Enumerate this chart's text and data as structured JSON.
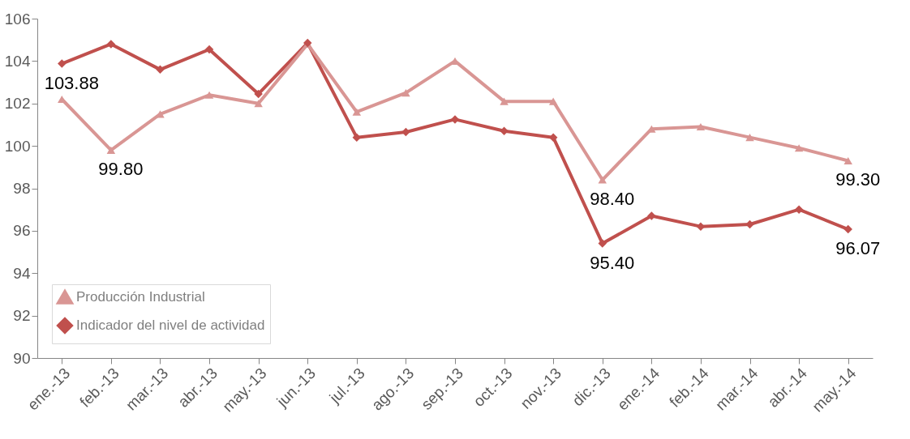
{
  "chart_data": {
    "type": "line",
    "categories": [
      "ene.-13",
      "feb.-13",
      "mar.-13",
      "abr.-13",
      "may.-13",
      "jun.-13",
      "jul.-13",
      "ago.-13",
      "sep.-13",
      "oct.-13",
      "nov.-13",
      "dic.-13",
      "ene.-14",
      "feb.-14",
      "mar.-14",
      "abr.-14",
      "may.-14"
    ],
    "series": [
      {
        "name": "Producción Industrial",
        "color": "#d99694",
        "marker": "triangle",
        "values": [
          102.2,
          99.8,
          101.5,
          102.4,
          102.0,
          104.8,
          101.6,
          102.5,
          104.0,
          102.1,
          102.1,
          98.4,
          100.8,
          100.9,
          100.4,
          99.9,
          99.3
        ],
        "value_labels": [
          null,
          "99.80",
          null,
          null,
          null,
          null,
          null,
          null,
          null,
          null,
          null,
          "98.40",
          null,
          null,
          null,
          null,
          "99.30"
        ]
      },
      {
        "name": "Indicador del nivel de actividad",
        "color": "#c0504d",
        "marker": "diamond",
        "values": [
          103.88,
          104.8,
          103.6,
          104.55,
          102.45,
          104.85,
          100.4,
          100.65,
          101.25,
          100.7,
          100.4,
          95.4,
          96.7,
          96.2,
          96.3,
          97.0,
          96.07
        ],
        "value_labels": [
          "103.88",
          null,
          null,
          null,
          null,
          null,
          null,
          null,
          null,
          null,
          null,
          "95.40",
          null,
          null,
          null,
          null,
          "96.07"
        ]
      }
    ],
    "ylim": [
      90,
      106
    ],
    "yticks": [
      90,
      92,
      94,
      96,
      98,
      100,
      102,
      104,
      106
    ],
    "grid": false,
    "legend": "bottom left",
    "line_style": "solid"
  }
}
